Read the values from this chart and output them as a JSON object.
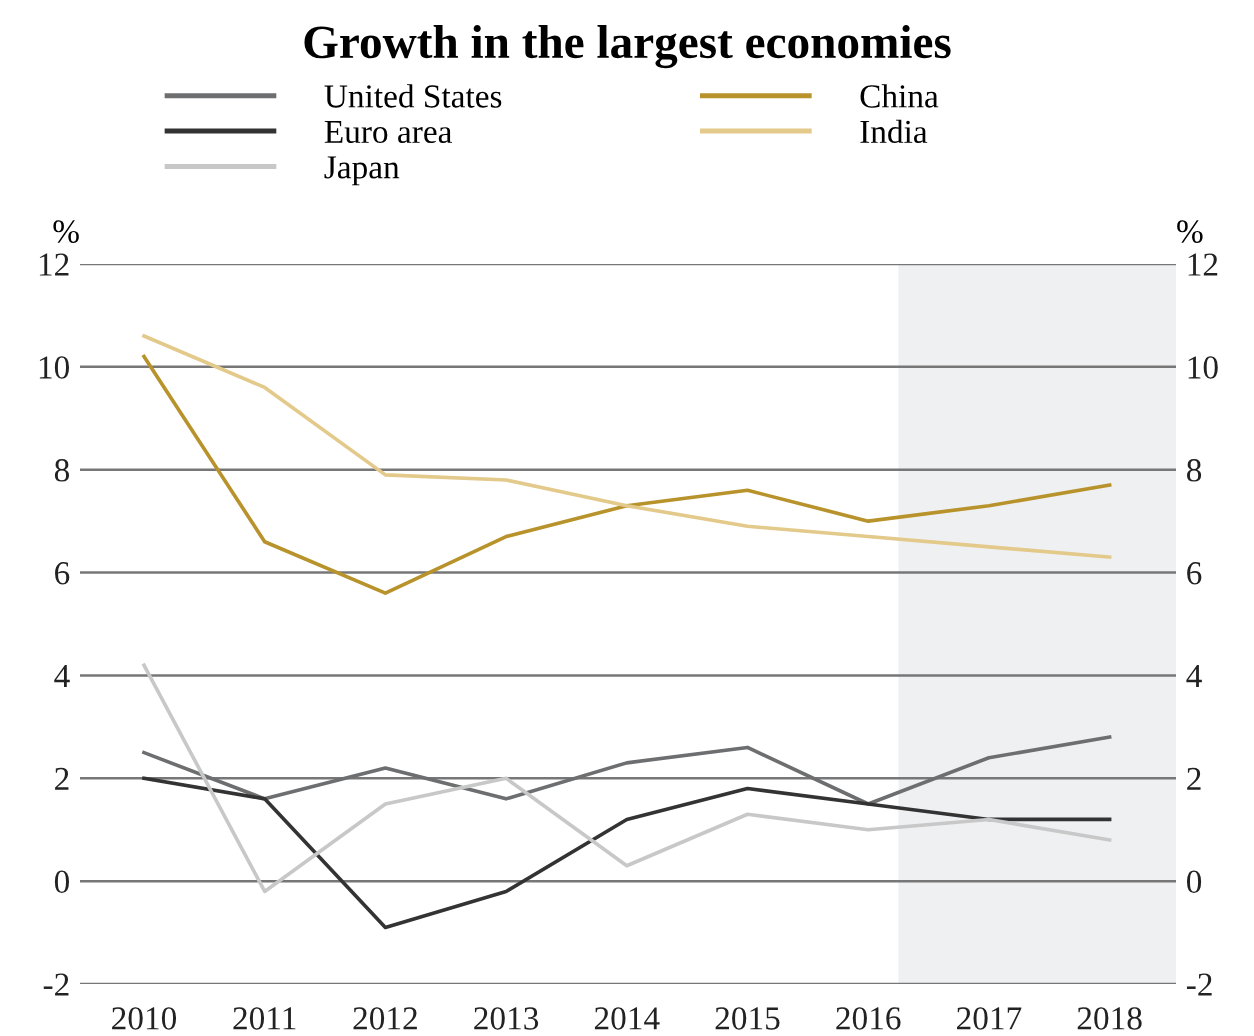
{
  "chart_data": {
    "type": "line",
    "title": "Growth in the largest economies",
    "x": [
      2010,
      2011,
      2012,
      2013,
      2014,
      2015,
      2016,
      2017,
      2018
    ],
    "series": [
      {
        "name": "United States",
        "color": "#6d6e70",
        "values": [
          2.5,
          1.6,
          2.2,
          1.6,
          2.3,
          2.6,
          1.5,
          2.4,
          2.8
        ]
      },
      {
        "name": "Euro area",
        "color": "#333333",
        "values": [
          2.0,
          1.6,
          -0.9,
          -0.2,
          1.2,
          1.8,
          1.5,
          1.2,
          1.2
        ]
      },
      {
        "name": "Japan",
        "color": "#c8c8c8",
        "values": [
          4.2,
          -0.2,
          1.5,
          2.0,
          0.3,
          1.3,
          1.0,
          1.2,
          0.8
        ]
      },
      {
        "name": "China",
        "color": "#b8922b",
        "values": [
          10.2,
          6.6,
          5.6,
          6.7,
          7.3,
          7.6,
          7.0,
          7.3,
          7.7
        ]
      },
      {
        "name": "India",
        "color": "#e3c98a",
        "values": [
          10.6,
          9.6,
          7.9,
          7.8,
          7.3,
          6.9,
          6.7,
          6.5,
          6.3
        ]
      }
    ],
    "ylabel": "%",
    "y2label": "%",
    "xlim": [
      2009.47,
      2018.55
    ],
    "xticks": [
      2010,
      2011,
      2012,
      2013,
      2014,
      2015,
      2016,
      2017,
      2018
    ],
    "ylim": [
      -2,
      12
    ],
    "yticks": [
      -2,
      0,
      2,
      4,
      6,
      8,
      10,
      12
    ],
    "y2lim": [
      -2,
      12
    ],
    "y2ticks": [
      -2,
      0,
      2,
      4,
      6,
      8,
      10,
      12
    ],
    "bands": [
      {
        "axis": "x",
        "from": 2016.25,
        "to": 2018.55,
        "color": "#eff0f2"
      }
    ],
    "grid": "y",
    "legend": "top",
    "marker": "none",
    "line_style": "solid"
  }
}
